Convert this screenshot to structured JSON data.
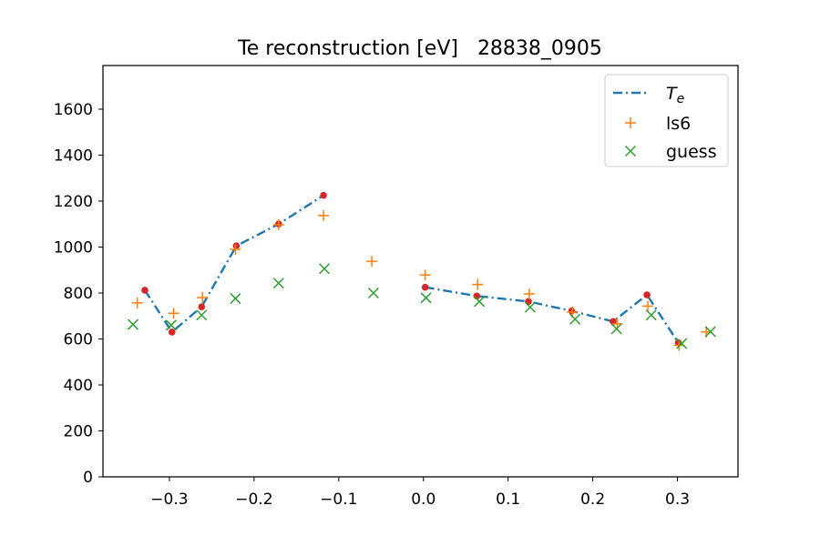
{
  "chart_data": {
    "type": "line",
    "title": "Te reconstruction [eV]   28838_0905",
    "xlabel": "",
    "ylabel": "",
    "xlim": [
      -0.3785,
      0.3715
    ],
    "ylim": [
      0,
      1790
    ],
    "grid": false,
    "legend_position": "top-right",
    "x_ticks": [
      -0.3,
      -0.2,
      -0.1,
      0.0,
      0.1,
      0.2,
      0.3
    ],
    "x_tick_labels": [
      "−0.3",
      "−0.2",
      "−0.1",
      "0.0",
      "0.1",
      "0.2",
      "0.3"
    ],
    "y_ticks": [
      0,
      200,
      400,
      600,
      800,
      1000,
      1200,
      1400,
      1600
    ],
    "y_tick_labels": [
      "0",
      "200",
      "400",
      "600",
      "800",
      "1000",
      "1200",
      "1400",
      "1600"
    ],
    "series": [
      {
        "name": "Te",
        "name_main": "T",
        "name_sub": "e",
        "style": "dashdot",
        "color": "#1f77b4",
        "marker_color": "#d62728",
        "segments": [
          {
            "x": [
              -0.329,
              -0.297,
              -0.262,
              -0.221,
              -0.171,
              -0.118
            ],
            "y": [
              812,
              630,
              740,
              1005,
              1100,
              1225
            ]
          },
          {
            "x": [
              0.002,
              0.063,
              0.124,
              0.175,
              0.224,
              0.264,
              0.301
            ],
            "y": [
              825,
              787,
              763,
              722,
              676,
              792,
              584
            ]
          }
        ]
      },
      {
        "name": "ls6",
        "marker": "+",
        "color": "#ff7f0e",
        "x": [
          -0.338,
          -0.295,
          -0.261,
          -0.222,
          -0.171,
          -0.118,
          -0.061,
          0.002,
          0.064,
          0.125,
          0.176,
          0.229,
          0.265,
          0.302,
          0.334
        ],
        "y": [
          757,
          712,
          780,
          990,
          1097,
          1137,
          938,
          878,
          837,
          796,
          717,
          666,
          743,
          572,
          630
        ]
      },
      {
        "name": "guess",
        "marker": "x",
        "color": "#2ca02c",
        "x": [
          -0.343,
          -0.298,
          -0.262,
          -0.222,
          -0.171,
          -0.117,
          -0.059,
          0.003,
          0.066,
          0.126,
          0.179,
          0.228,
          0.269,
          0.305,
          0.339
        ],
        "y": [
          663,
          660,
          704,
          776,
          843,
          906,
          800,
          779,
          763,
          738,
          686,
          644,
          704,
          580,
          632
        ]
      }
    ]
  }
}
